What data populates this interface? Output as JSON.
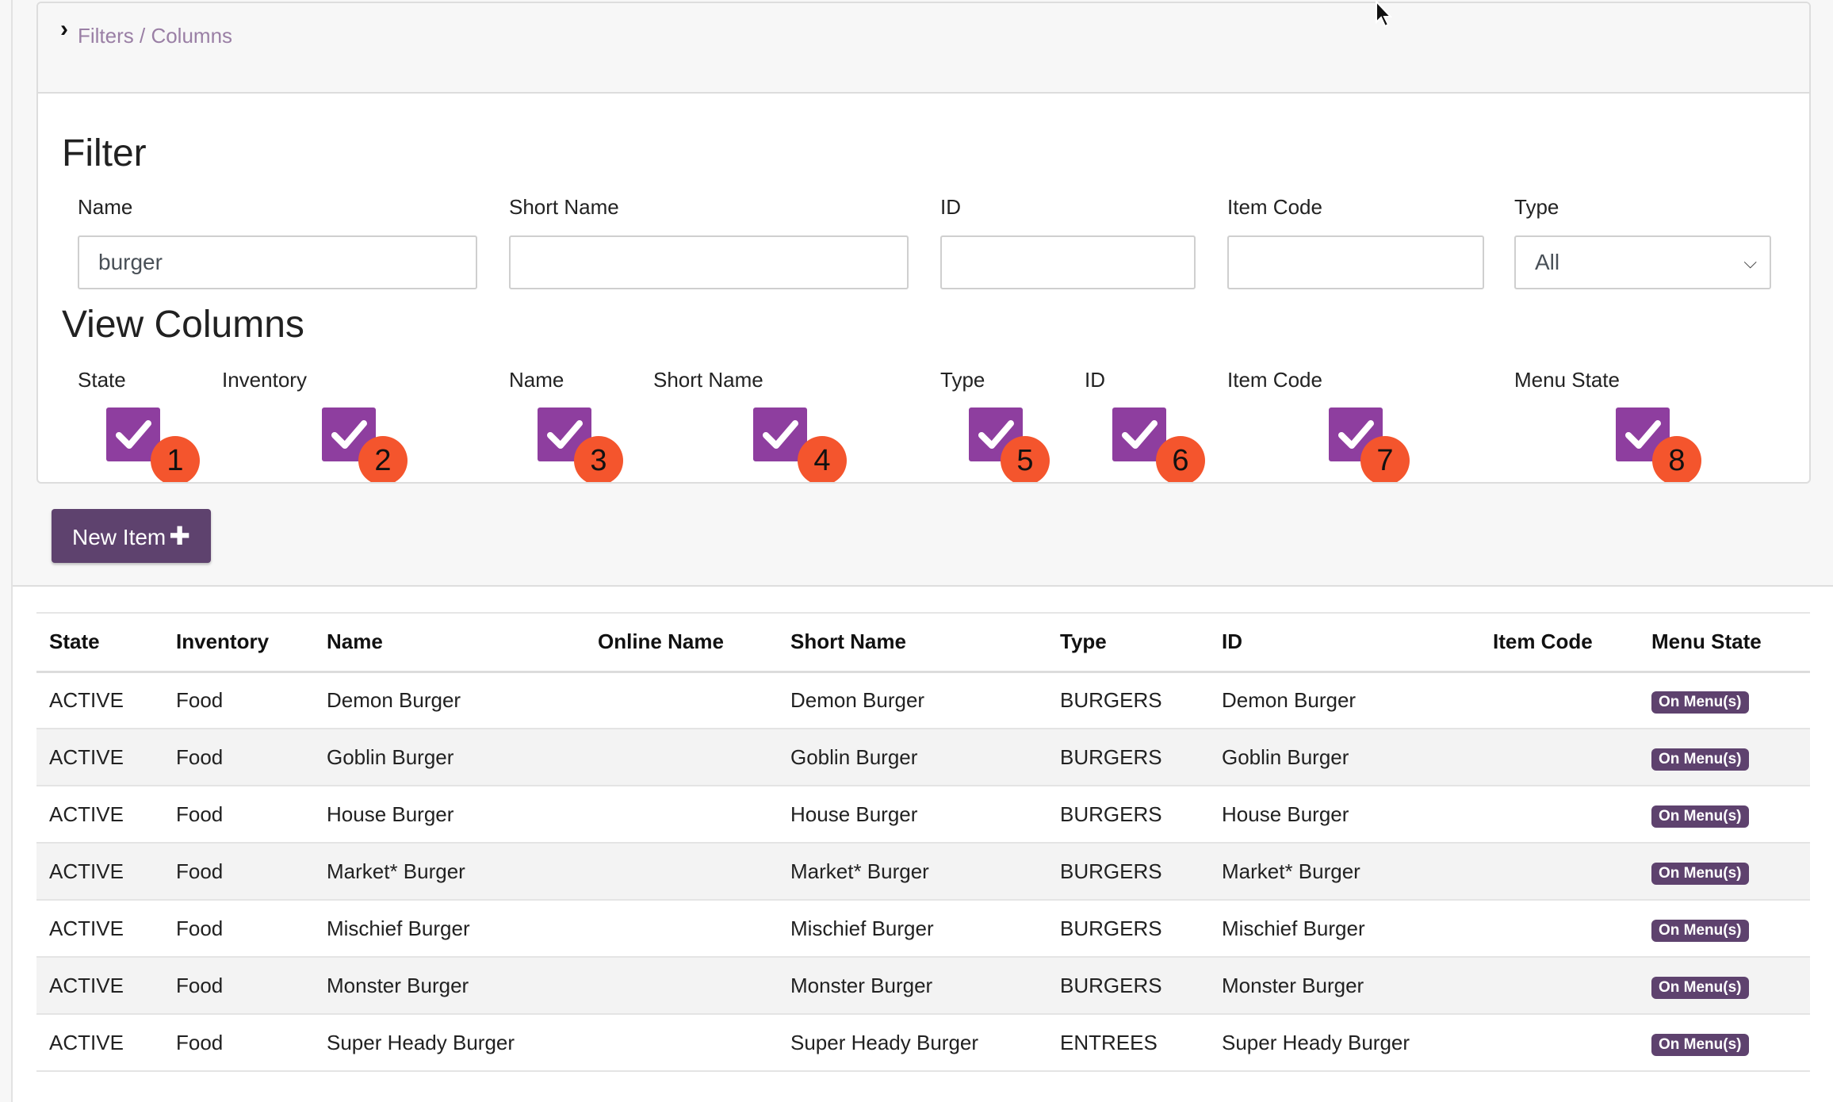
{
  "breadcrumb": "Filters / Columns",
  "filter": {
    "title": "Filter",
    "fields": [
      {
        "label": "Name",
        "value": "burger"
      },
      {
        "label": "Short Name",
        "value": ""
      },
      {
        "label": "ID",
        "value": ""
      },
      {
        "label": "Item Code",
        "value": ""
      }
    ],
    "type": {
      "label": "Type",
      "selected": "All"
    }
  },
  "view_columns": {
    "title": "View Columns",
    "columns": [
      {
        "label": "State",
        "checked": true,
        "marker": "1"
      },
      {
        "label": "Inventory",
        "checked": true,
        "marker": "2"
      },
      {
        "label": "Name",
        "checked": true,
        "marker": "3"
      },
      {
        "label": "Short Name",
        "checked": true,
        "marker": "4"
      },
      {
        "label": "Type",
        "checked": true,
        "marker": "5"
      },
      {
        "label": "ID",
        "checked": true,
        "marker": "6"
      },
      {
        "label": "Item Code",
        "checked": true,
        "marker": "7"
      },
      {
        "label": "Menu State",
        "checked": true,
        "marker": "8"
      }
    ]
  },
  "new_item_label": "New Item",
  "table": {
    "headers": [
      "State",
      "Inventory",
      "Name",
      "Online Name",
      "Short Name",
      "Type",
      "ID",
      "Item Code",
      "Menu State"
    ],
    "rows": [
      [
        "ACTIVE",
        "Food",
        "Demon Burger",
        "",
        "Demon Burger",
        "BURGERS",
        "Demon Burger",
        "",
        "On Menu(s)"
      ],
      [
        "ACTIVE",
        "Food",
        "Goblin Burger",
        "",
        "Goblin Burger",
        "BURGERS",
        "Goblin Burger",
        "",
        "On Menu(s)"
      ],
      [
        "ACTIVE",
        "Food",
        "House Burger",
        "",
        "House Burger",
        "BURGERS",
        "House Burger",
        "",
        "On Menu(s)"
      ],
      [
        "ACTIVE",
        "Food",
        "Market* Burger",
        "",
        "Market* Burger",
        "BURGERS",
        "Market* Burger",
        "",
        "On Menu(s)"
      ],
      [
        "ACTIVE",
        "Food",
        "Mischief Burger",
        "",
        "Mischief Burger",
        "BURGERS",
        "Mischief Burger",
        "",
        "On Menu(s)"
      ],
      [
        "ACTIVE",
        "Food",
        "Monster Burger",
        "",
        "Monster Burger",
        "BURGERS",
        "Monster Burger",
        "",
        "On Menu(s)"
      ],
      [
        "ACTIVE",
        "Food",
        "Super Heady Burger",
        "",
        "Super Heady Burger",
        "ENTREES",
        "Super Heady Burger",
        "",
        "On Menu(s)"
      ]
    ]
  },
  "colors": {
    "accent": "#5e426e",
    "checkbox": "#8e3e9f",
    "marker": "#f4552d"
  }
}
